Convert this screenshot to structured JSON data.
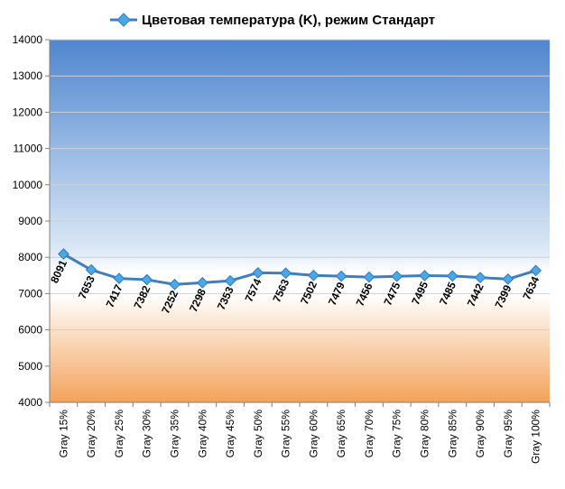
{
  "chart_data": {
    "type": "line",
    "legend": "Цветовая температура (K), режим Стандарт",
    "legend_position": "top",
    "categories": [
      "Gray 15%",
      "Gray 20%",
      "Gray 25%",
      "Gray 30%",
      "Gray 35%",
      "Gray 40%",
      "Gray 45%",
      "Gray 50%",
      "Gray 55%",
      "Gray 60%",
      "Gray 65%",
      "Gray 70%",
      "Gray 75%",
      "Gray 80%",
      "Gray 85%",
      "Gray 90%",
      "Gray 95%",
      "Gray 100%"
    ],
    "series": [
      {
        "name": "Цветовая температура (K), режим Стандарт",
        "values": [
          8091,
          7653,
          7417,
          7382,
          7252,
          7298,
          7353,
          7574,
          7563,
          7502,
          7479,
          7456,
          7475,
          7495,
          7485,
          7442,
          7399,
          7634
        ],
        "color": "#3f7fc0"
      }
    ],
    "ylim": [
      4000,
      14000
    ],
    "yticks": [
      "4000",
      "5000",
      "6000",
      "7000",
      "8000",
      "9000",
      "10000",
      "11000",
      "12000",
      "13000",
      "14000"
    ],
    "grid": true,
    "background": {
      "top_color": "#4f86cf",
      "mid_color": "#ffffff",
      "bottom_color": "#f4a25a",
      "white_band": [
        7000,
        8000
      ]
    }
  }
}
